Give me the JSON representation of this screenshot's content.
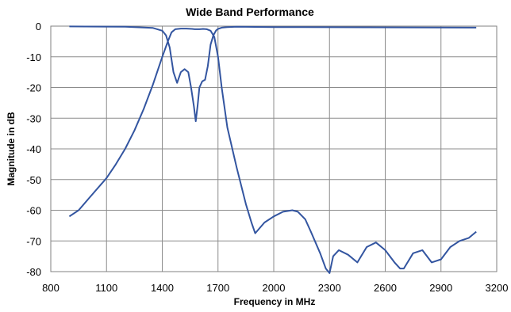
{
  "chart_data": {
    "type": "line",
    "title": "Wide Band Performance",
    "xlabel": "Frequency in MHz",
    "ylabel": "Magnitude in dB",
    "xlim": [
      800,
      3200
    ],
    "ylim": [
      -80,
      0
    ],
    "xticks": [
      800,
      1100,
      1400,
      1700,
      2000,
      2300,
      2600,
      2900,
      3200
    ],
    "yticks": [
      0,
      -10,
      -20,
      -30,
      -40,
      -50,
      -60,
      -70,
      -80
    ],
    "grid": true,
    "legend": "none",
    "series": [
      {
        "role": "insertion",
        "color": "#3355a0",
        "x": [
          900,
          950,
          1000,
          1050,
          1100,
          1150,
          1200,
          1250,
          1300,
          1350,
          1400,
          1430,
          1450,
          1470,
          1500,
          1530,
          1560,
          1575,
          1585,
          1600,
          1620,
          1640,
          1660,
          1680,
          1700,
          1720,
          1750,
          1800,
          1850,
          1880,
          1900,
          1950,
          2000,
          2050,
          2100,
          2130,
          2170,
          2200,
          2250,
          2280,
          2300,
          2320,
          2350,
          2400,
          2450,
          2500,
          2550,
          2600,
          2650,
          2680,
          2700,
          2750,
          2800,
          2850,
          2900,
          2950,
          3000,
          3050,
          3090
        ],
        "y": [
          -62,
          -60,
          -56.5,
          -53,
          -49.5,
          -45,
          -40,
          -34,
          -27,
          -19,
          -10,
          -5,
          -2,
          -1,
          -0.8,
          -0.8,
          -0.9,
          -1.0,
          -1.0,
          -1.0,
          -0.9,
          -1,
          -1.5,
          -3.5,
          -10,
          -20,
          -33,
          -46,
          -58,
          -64,
          -67.5,
          -64,
          -62,
          -60.5,
          -60,
          -60.5,
          -63,
          -67,
          -74,
          -79,
          -80.5,
          -75,
          -73,
          -74.5,
          -77,
          -72,
          -70.5,
          -73,
          -77,
          -79,
          -79,
          -74,
          -73,
          -77,
          -76,
          -72,
          -70,
          -69,
          -67
        ]
      },
      {
        "role": "return-loss",
        "color": "#3355a0",
        "x": [
          900,
          1200,
          1350,
          1400,
          1420,
          1440,
          1460,
          1480,
          1500,
          1520,
          1540,
          1555,
          1570,
          1580,
          1590,
          1600,
          1615,
          1630,
          1645,
          1660,
          1675,
          1690,
          1700,
          1720,
          1750,
          1800,
          2000,
          2500,
          3090
        ],
        "y": [
          -0.1,
          -0.2,
          -0.6,
          -1.5,
          -3,
          -7,
          -15,
          -18.5,
          -15,
          -14,
          -15,
          -20,
          -26,
          -31,
          -26,
          -20,
          -18,
          -17.5,
          -13,
          -6,
          -3,
          -1.4,
          -0.9,
          -0.5,
          -0.3,
          -0.2,
          -0.3,
          -0.4,
          -0.5
        ]
      }
    ]
  }
}
